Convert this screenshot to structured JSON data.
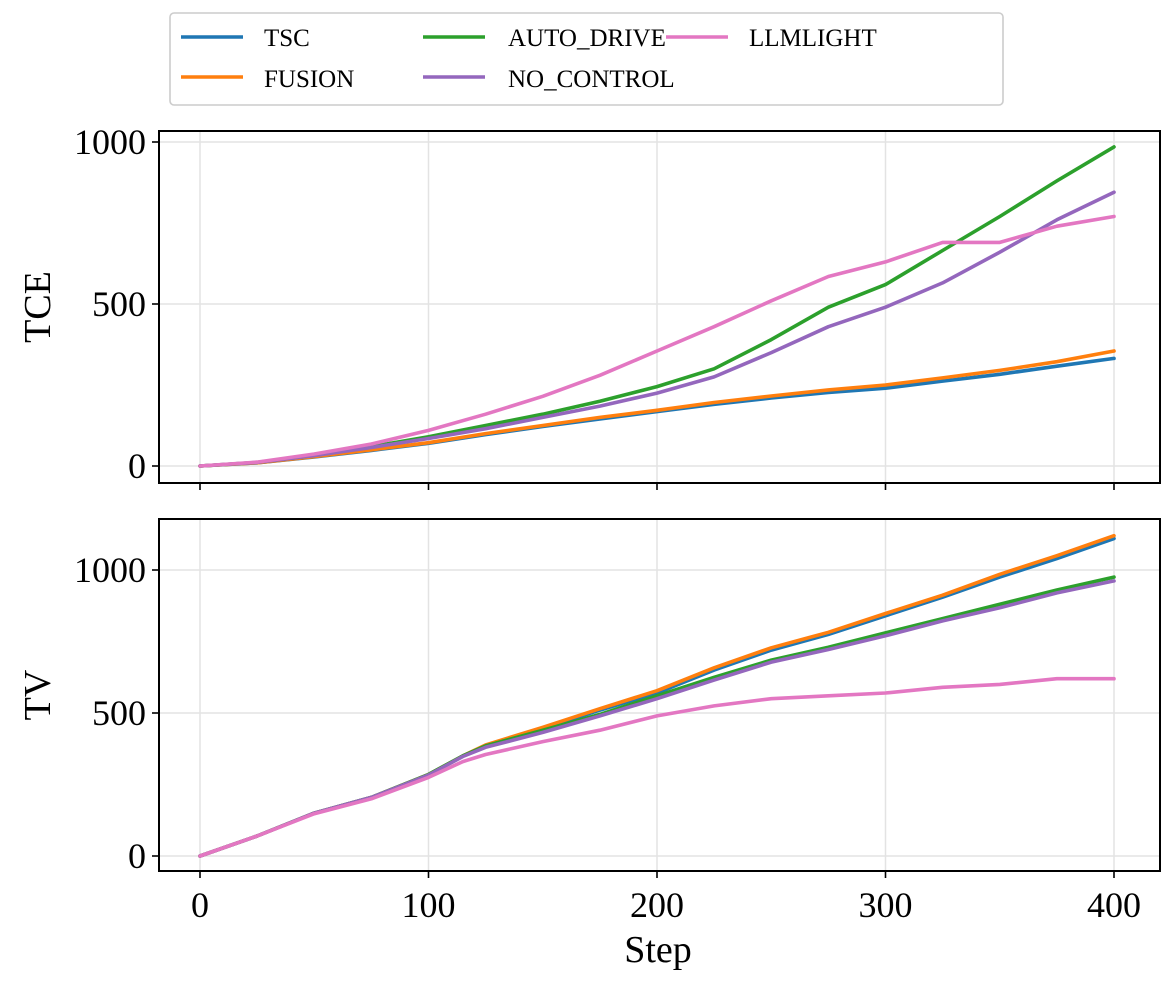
{
  "legend": {
    "items": [
      {
        "label": "TSC",
        "color": "#1f77b4"
      },
      {
        "label": "FUSION",
        "color": "#ff7f0e"
      },
      {
        "label": "AUTO_DRIVE",
        "color": "#2ca02c"
      },
      {
        "label": "NO_CONTROL",
        "color": "#9467bd"
      },
      {
        "label": "LLMLIGHT",
        "color": "#e377c2"
      }
    ]
  },
  "chart_data": [
    {
      "type": "line",
      "title": "",
      "xlabel": "",
      "ylabel": "TCE",
      "xlim": [
        -18,
        420
      ],
      "ylim": [
        -50,
        1030
      ],
      "xticks": [
        0,
        100,
        200,
        300,
        400
      ],
      "xtick_labels_visible": false,
      "yticks": [
        0,
        500,
        1000
      ],
      "ytick_labels": [
        "0",
        "500",
        "1000"
      ],
      "grid": true,
      "x": [
        0,
        25,
        50,
        75,
        100,
        125,
        150,
        175,
        200,
        225,
        250,
        275,
        300,
        325,
        350,
        375,
        400
      ],
      "series": [
        {
          "name": "TSC",
          "color": "#1f77b4",
          "values": [
            0,
            10,
            28,
            48,
            70,
            97,
            122,
            145,
            168,
            190,
            210,
            227,
            240,
            262,
            283,
            308,
            332
          ]
        },
        {
          "name": "FUSION",
          "color": "#ff7f0e",
          "values": [
            0,
            10,
            29,
            50,
            72,
            100,
            125,
            150,
            172,
            196,
            216,
            235,
            250,
            272,
            295,
            322,
            355
          ]
        },
        {
          "name": "AUTO_DRIVE",
          "color": "#2ca02c",
          "values": [
            0,
            11,
            33,
            60,
            90,
            125,
            160,
            200,
            245,
            300,
            390,
            490,
            560,
            665,
            770,
            880,
            985
          ]
        },
        {
          "name": "NO_CONTROL",
          "color": "#9467bd",
          "values": [
            0,
            11,
            32,
            57,
            85,
            115,
            150,
            185,
            225,
            275,
            350,
            430,
            490,
            565,
            660,
            760,
            845
          ]
        },
        {
          "name": "LLMLIGHT",
          "color": "#e377c2",
          "values": [
            0,
            12,
            37,
            68,
            110,
            160,
            215,
            280,
            355,
            430,
            510,
            585,
            630,
            690,
            690,
            740,
            770
          ]
        }
      ]
    },
    {
      "type": "line",
      "title": "",
      "xlabel": "Step",
      "ylabel": "TV",
      "xlim": [
        -18,
        420
      ],
      "ylim": [
        -50,
        1180
      ],
      "xticks": [
        0,
        100,
        200,
        300,
        400
      ],
      "xtick_labels": [
        "0",
        "100",
        "200",
        "300",
        "400"
      ],
      "yticks": [
        0,
        500,
        1000
      ],
      "ytick_labels": [
        "0",
        "500",
        "1000"
      ],
      "grid": true,
      "x": [
        0,
        25,
        50,
        75,
        100,
        115,
        125,
        150,
        175,
        200,
        225,
        250,
        275,
        300,
        325,
        350,
        375,
        400
      ],
      "series": [
        {
          "name": "TSC",
          "color": "#1f77b4",
          "values": [
            0,
            70,
            150,
            205,
            285,
            350,
            385,
            445,
            510,
            570,
            650,
            720,
            775,
            840,
            905,
            975,
            1040,
            1110
          ]
        },
        {
          "name": "FUSION",
          "color": "#ff7f0e",
          "values": [
            0,
            70,
            150,
            205,
            285,
            350,
            388,
            450,
            515,
            578,
            658,
            728,
            782,
            848,
            912,
            985,
            1050,
            1120
          ]
        },
        {
          "name": "AUTO_DRIVE",
          "color": "#2ca02c",
          "values": [
            0,
            70,
            150,
            205,
            285,
            350,
            385,
            440,
            495,
            560,
            625,
            685,
            730,
            780,
            830,
            880,
            930,
            975
          ]
        },
        {
          "name": "NO_CONTROL",
          "color": "#9467bd",
          "values": [
            0,
            70,
            150,
            205,
            283,
            348,
            380,
            432,
            490,
            550,
            615,
            678,
            722,
            770,
            822,
            868,
            920,
            962
          ]
        },
        {
          "name": "LLMLIGHT",
          "color": "#e377c2",
          "values": [
            0,
            70,
            148,
            200,
            275,
            330,
            355,
            400,
            440,
            490,
            525,
            550,
            560,
            570,
            590,
            600,
            620,
            620
          ]
        }
      ]
    }
  ]
}
